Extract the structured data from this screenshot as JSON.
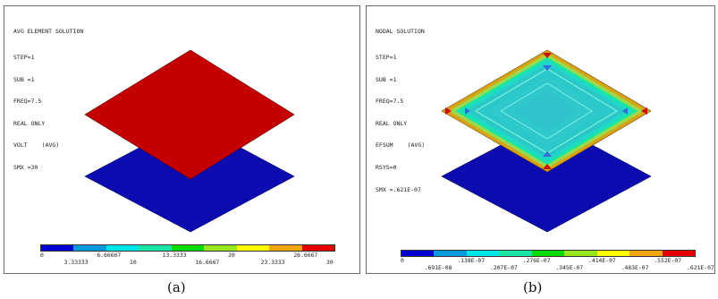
{
  "panel_a": {
    "title": "AVG ELEMENT SOLUTION",
    "lines": [
      "STEP=1",
      "SUB =1",
      "FREQ=7.5",
      "REAL ONLY"
    ],
    "volt_label": "VOLT",
    "volt_avg": "(AVG)",
    "smx": "SMX =30",
    "legend": {
      "colors": [
        "#0000d4",
        "#009bdc",
        "#00e6e6",
        "#19e6a5",
        "#00dc00",
        "#96e61e",
        "#ffff00",
        "#f0a50a",
        "#e60000"
      ],
      "top_ticks": [
        "0",
        "6.66667",
        "13.3333",
        "20",
        "26.6667"
      ],
      "bottom_ticks": [
        "3.33333",
        "10",
        "16.6667",
        "23.3333",
        "30"
      ]
    },
    "top_plate_color": "#c40000",
    "bottom_plate_color": "#0b0bb0"
  },
  "panel_b": {
    "title": "NODAL SOLUTION",
    "lines": [
      "STEP=1",
      "SUB =1",
      "FREQ=7.5",
      "REAL ONLY"
    ],
    "efsum_label": "EFSUM",
    "efsum_avg": "(AVG)",
    "rsys": "RSYS=0",
    "smx": "SMX =.621E-07",
    "legend": {
      "colors": [
        "#0000d4",
        "#009bdc",
        "#00e6e6",
        "#19e6a5",
        "#00dc00",
        "#96e61e",
        "#ffff00",
        "#f0a50a",
        "#e60000"
      ],
      "top_ticks": [
        "0",
        ".138E-07",
        ".276E-07",
        ".414E-07",
        ".552E-07"
      ],
      "bottom_ticks": [
        ".691E-08",
        ".207E-07",
        ".345E-07",
        ".483E-07",
        ".621E-07"
      ]
    },
    "bottom_plate_color": "#0b0bb0"
  },
  "captions": {
    "a": "(a)",
    "b": "(b)"
  }
}
